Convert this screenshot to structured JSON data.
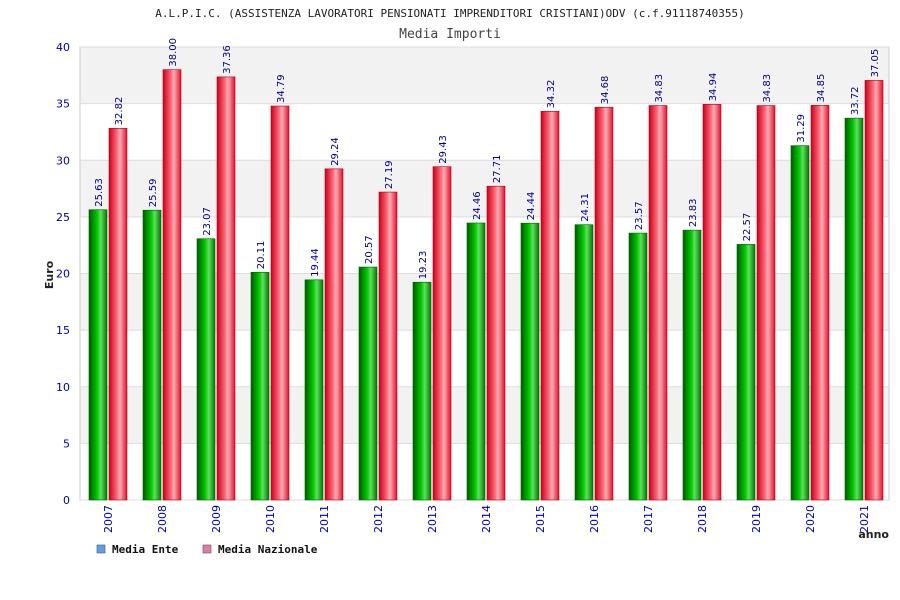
{
  "chart_data": {
    "type": "bar",
    "title": "A.L.P.I.C. (ASSISTENZA LAVORATORI PENSIONATI IMPRENDITORI CRISTIANI)ODV (c.f.91118740355)",
    "subtitle": "Media Importi",
    "xlabel": "anno",
    "ylabel": "Euro",
    "ylim": [
      0,
      40
    ],
    "yticks": [
      "0",
      "5",
      "10",
      "15",
      "20",
      "25",
      "30",
      "35",
      "40"
    ],
    "categories": [
      "2007",
      "2008",
      "2009",
      "2010",
      "2011",
      "2012",
      "2013",
      "2014",
      "2015",
      "2016",
      "2017",
      "2018",
      "2019",
      "2020",
      "2021"
    ],
    "series": [
      {
        "name": "Media Ente",
        "color": "#00a000",
        "legend_color": "#5aa0e6",
        "values": [
          25.63,
          25.59,
          23.07,
          20.11,
          19.44,
          20.57,
          19.23,
          24.46,
          24.44,
          24.31,
          23.57,
          23.83,
          22.57,
          31.29,
          33.72
        ],
        "labels": [
          "25.63",
          "25.59",
          "23.07",
          "20.11",
          "19.44",
          "20.57",
          "19.23",
          "24.46",
          "24.44",
          "24.31",
          "23.57",
          "23.83",
          "22.57",
          "31.29",
          "33.72"
        ]
      },
      {
        "name": "Media Nazionale",
        "color": "#e8102a",
        "legend_color": "#e07aa8",
        "values": [
          32.82,
          38.0,
          37.36,
          34.79,
          29.24,
          27.19,
          29.43,
          27.71,
          34.32,
          34.68,
          34.83,
          34.94,
          34.83,
          34.85,
          37.05
        ],
        "labels": [
          "32.82",
          "38.00",
          "37.36",
          "34.79",
          "29.24",
          "27.19",
          "29.43",
          "27.71",
          "34.32",
          "34.68",
          "34.83",
          "34.94",
          "34.83",
          "34.85",
          "37.05"
        ]
      }
    ],
    "grid": true,
    "legend_position": "bottom-left"
  }
}
